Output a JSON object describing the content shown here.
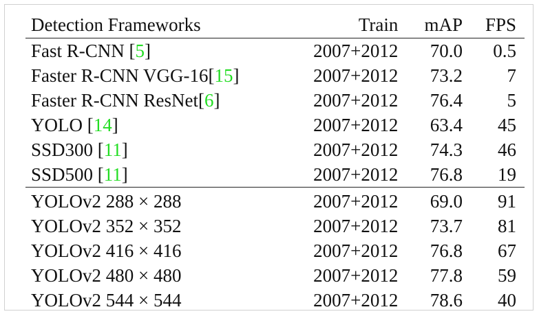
{
  "table": {
    "headers": {
      "name": "Detection Frameworks",
      "train": "Train",
      "map": "mAP",
      "fps": "FPS"
    },
    "prior_rows": [
      {
        "name": "Fast R-CNN ",
        "ref": "5",
        "train": "2007+2012",
        "map": "70.0",
        "fps": "0.5"
      },
      {
        "name": "Faster R-CNN VGG-16",
        "ref": "15",
        "train": "2007+2012",
        "map": "73.2",
        "fps": "7"
      },
      {
        "name": "Faster R-CNN ResNet",
        "ref": "6",
        "train": "2007+2012",
        "map": "76.4",
        "fps": "5"
      },
      {
        "name": "YOLO ",
        "ref": "14",
        "train": "2007+2012",
        "map": "63.4",
        "fps": "45"
      },
      {
        "name": "SSD300 ",
        "ref": "11",
        "train": "2007+2012",
        "map": "74.3",
        "fps": "46"
      },
      {
        "name": "SSD500 ",
        "ref": "11",
        "train": "2007+2012",
        "map": "76.8",
        "fps": "19"
      }
    ],
    "yolov2_rows": [
      {
        "name": "YOLOv2 288 × 288",
        "train": "2007+2012",
        "map": "69.0",
        "fps": "91"
      },
      {
        "name": "YOLOv2 352 × 352",
        "train": "2007+2012",
        "map": "73.7",
        "fps": "81"
      },
      {
        "name": "YOLOv2 416 × 416",
        "train": "2007+2012",
        "map": "76.8",
        "fps": "67"
      },
      {
        "name": "YOLOv2 480 × 480",
        "train": "2007+2012",
        "map": "77.8",
        "fps": "59"
      },
      {
        "name": "YOLOv2 544 × 544",
        "train": "2007+2012",
        "map": "78.6",
        "fps": "40",
        "bold_map": true
      }
    ],
    "colors": {
      "reference_link": "#22dd22",
      "text": "#111111",
      "rule": "#222222"
    }
  }
}
